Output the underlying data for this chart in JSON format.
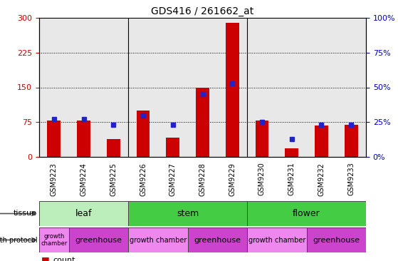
{
  "title": "GDS416 / 261662_at",
  "samples": [
    "GSM9223",
    "GSM9224",
    "GSM9225",
    "GSM9226",
    "GSM9227",
    "GSM9228",
    "GSM9229",
    "GSM9230",
    "GSM9231",
    "GSM9232",
    "GSM9233"
  ],
  "counts": [
    78,
    78,
    38,
    100,
    42,
    150,
    290,
    78,
    18,
    68,
    70
  ],
  "percentiles": [
    27,
    27,
    23,
    30,
    23,
    45,
    53,
    25,
    13,
    23,
    23
  ],
  "ylim_left": [
    0,
    300
  ],
  "ylim_right": [
    0,
    100
  ],
  "yticks_left": [
    0,
    75,
    150,
    225,
    300
  ],
  "yticks_right": [
    0,
    25,
    50,
    75,
    100
  ],
  "bar_color": "#cc0000",
  "marker_color": "#2222cc",
  "grid_color": "#000000",
  "axis_bg": "#e8e8e8",
  "plot_bg": "#ffffff",
  "left_label_color": "#cc0000",
  "right_label_color": "#0000cc",
  "tissue_groups": [
    {
      "label": "leaf",
      "start": 0,
      "end": 2,
      "color": "#bbeebb"
    },
    {
      "label": "stem",
      "start": 3,
      "end": 6,
      "color": "#44cc44"
    },
    {
      "label": "flower",
      "start": 7,
      "end": 10,
      "color": "#44cc44"
    }
  ],
  "growth_groups": [
    {
      "label": "growth\nchamber",
      "start": 0,
      "end": 0,
      "color": "#ee88ee",
      "fontsize": 6
    },
    {
      "label": "greenhouse",
      "start": 1,
      "end": 2,
      "color": "#cc44cc",
      "fontsize": 8
    },
    {
      "label": "growth chamber",
      "start": 3,
      "end": 4,
      "color": "#ee88ee",
      "fontsize": 7
    },
    {
      "label": "greenhouse",
      "start": 5,
      "end": 6,
      "color": "#cc44cc",
      "fontsize": 8
    },
    {
      "label": "growth chamber",
      "start": 7,
      "end": 8,
      "color": "#ee88ee",
      "fontsize": 7
    },
    {
      "label": "greenhouse",
      "start": 9,
      "end": 10,
      "color": "#cc44cc",
      "fontsize": 8
    }
  ]
}
